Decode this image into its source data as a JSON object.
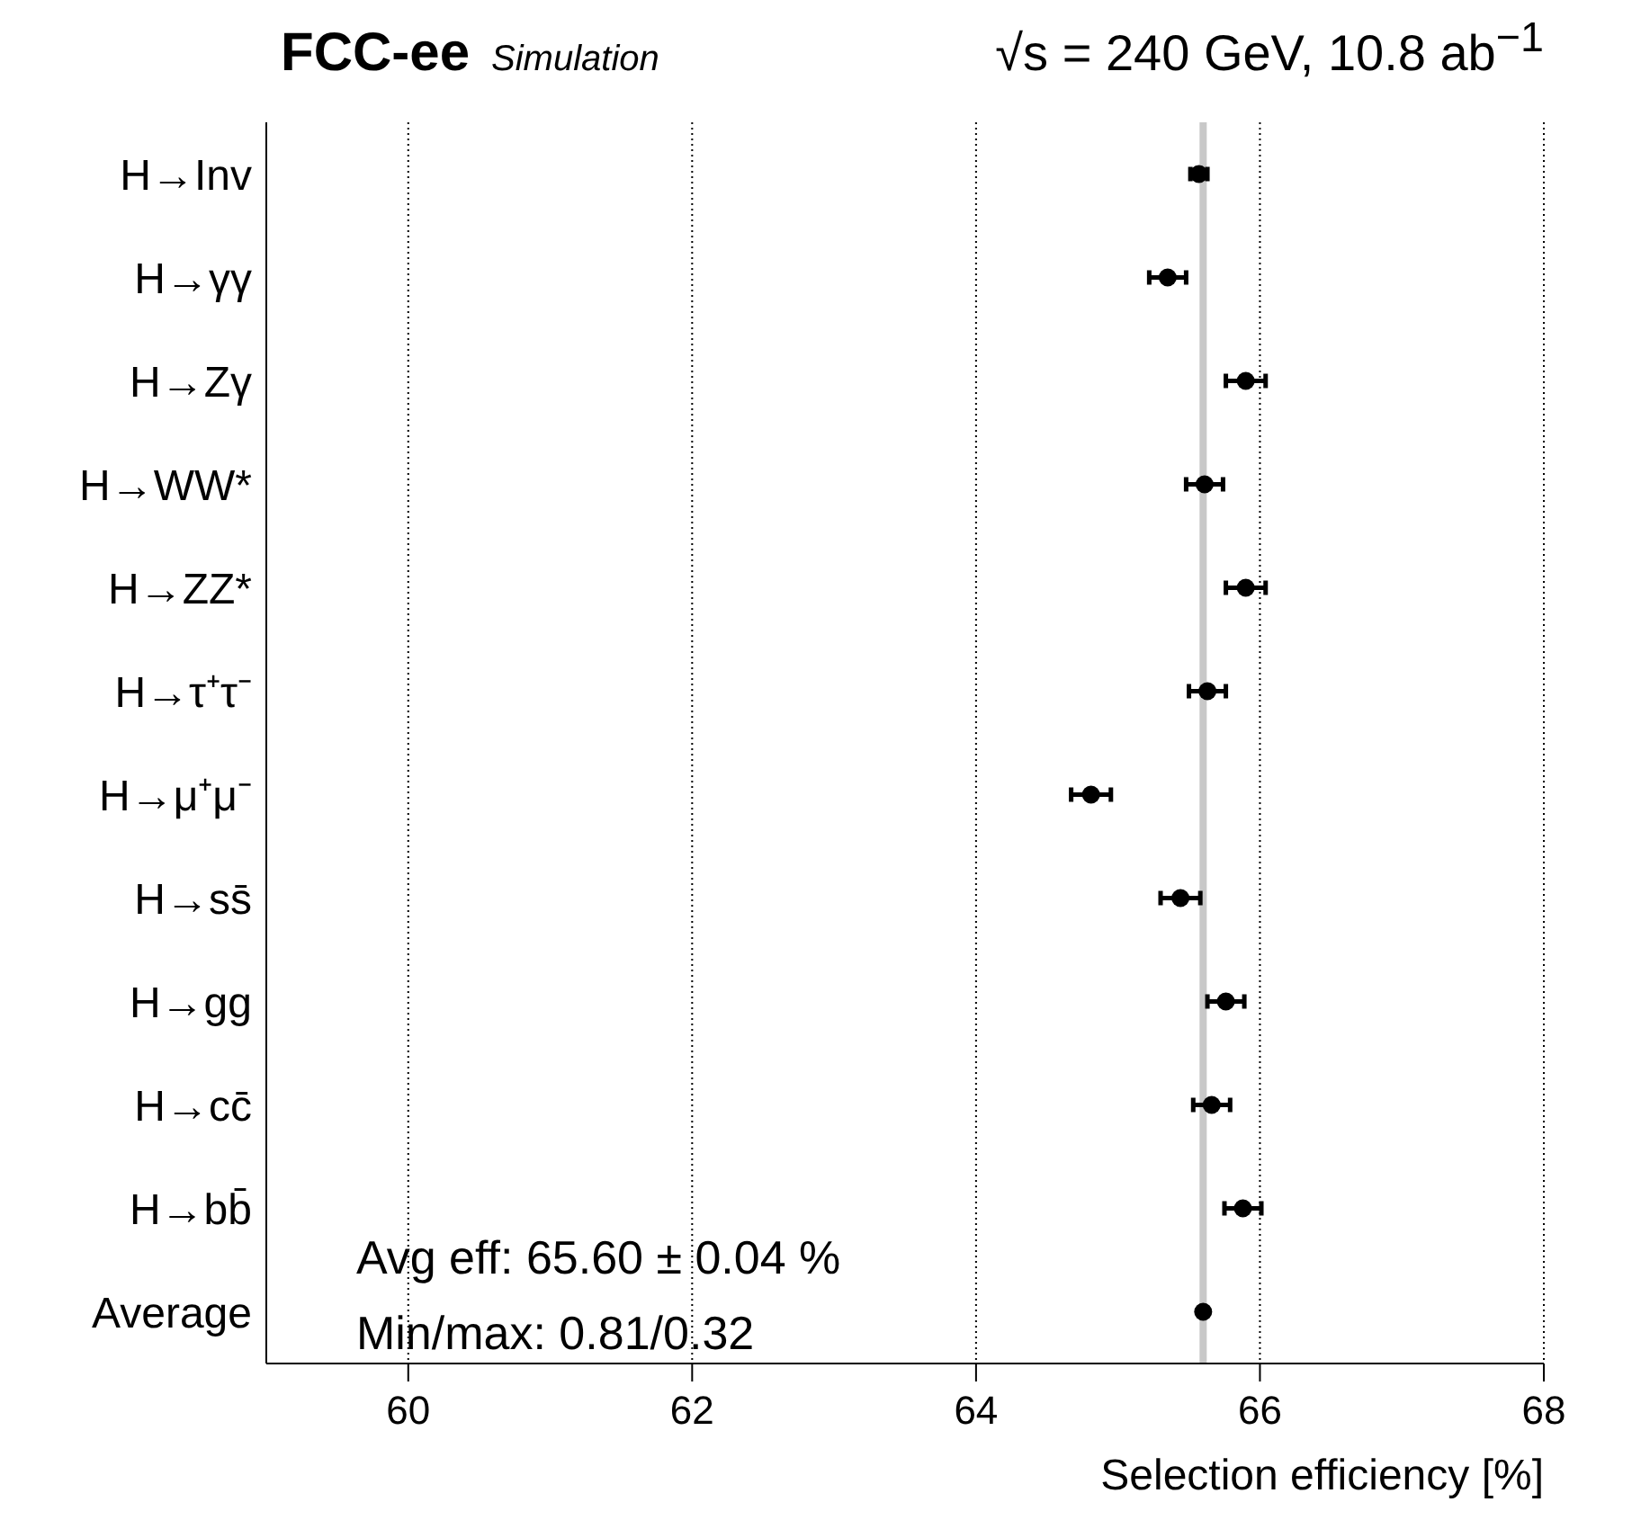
{
  "chart_data": {
    "type": "scatter",
    "orientation": "horizontal",
    "title": "FCC-ee",
    "subtitle": "Simulation",
    "annotations": [
      "√s = 240 GeV, 10.8 ab$^{−1}$",
      "Avg eff: 65.60  ± 0.04 %",
      "Min/max: 0.81/0.32"
    ],
    "xlabel": "Selection efficiency [%]",
    "categories": [
      "H→Inv",
      "H→γγ",
      "H→Zγ",
      "H→WW*",
      "H→ZZ*",
      "H→τ⁺τ⁻",
      "H→μ⁺μ⁻",
      "H→ss̄",
      "H→gg",
      "H→cc̄",
      "H→bb̄",
      "Average"
    ],
    "values": [
      65.57,
      65.35,
      65.9,
      65.61,
      65.9,
      65.63,
      64.81,
      65.44,
      65.76,
      65.66,
      65.88,
      65.6
    ],
    "errors": [
      0.06,
      0.13,
      0.14,
      0.13,
      0.14,
      0.13,
      0.14,
      0.14,
      0.13,
      0.13,
      0.13,
      null
    ],
    "color": "#000000",
    "marker": "circle",
    "xlim": [
      59,
      68
    ],
    "xticks": [
      60,
      62,
      64,
      66,
      68
    ],
    "grid": "x",
    "ref_lines": [
      {
        "axis": "x",
        "value": 65.6,
        "label": null,
        "color": "#c8c8c8"
      }
    ]
  }
}
